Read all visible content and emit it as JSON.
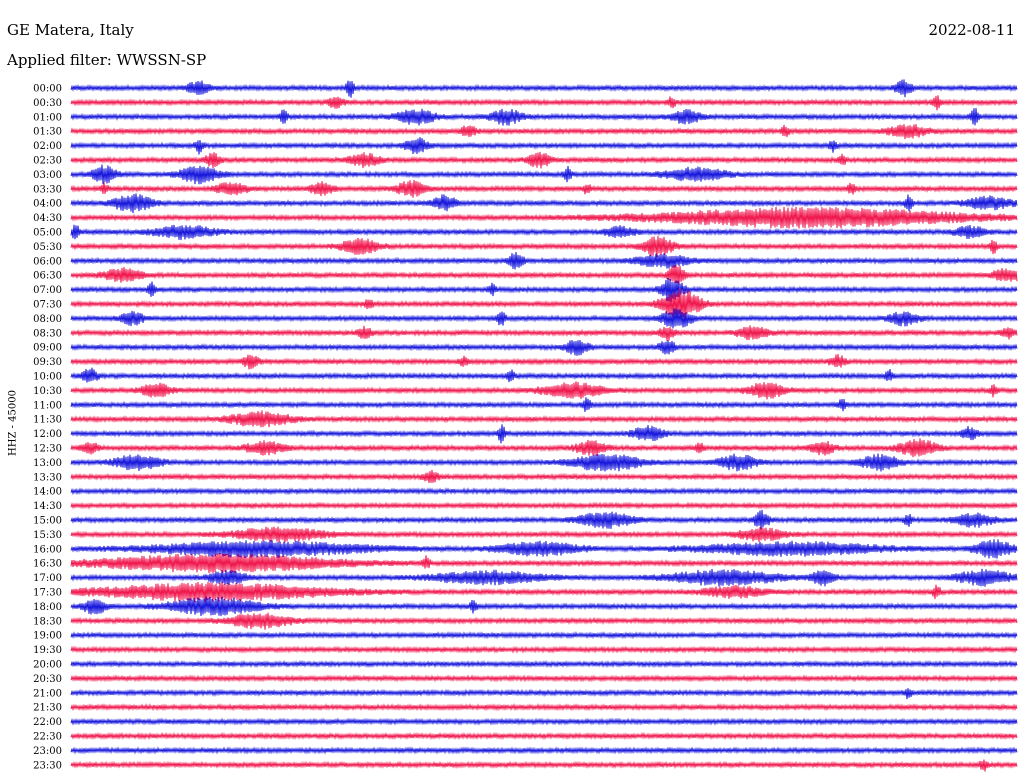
{
  "header": {
    "station": "GE Matera, Italy",
    "date": "2022-08-11",
    "filter": "Applied filter: WWSSN-SP"
  },
  "chart_data": {
    "type": "line",
    "title": "GE Matera, Italy",
    "subtitle": "Applied filter: WWSSN-SP",
    "ylabel": "HHZ - 45000",
    "xlabel": "",
    "grid": false,
    "legend": "none",
    "colors": [
      "#1414dc",
      "#f0144b"
    ],
    "rows": [
      {
        "time": "00:00",
        "events": [
          {
            "x": 0.12,
            "w": 0.03,
            "a": 6
          },
          {
            "x": 0.29,
            "w": 0.01,
            "a": 9
          },
          {
            "x": 0.87,
            "w": 0.02,
            "a": 8
          }
        ]
      },
      {
        "time": "00:30",
        "events": [
          {
            "x": 0.27,
            "w": 0.02,
            "a": 5
          },
          {
            "x": 0.63,
            "w": 0.01,
            "a": 5
          },
          {
            "x": 0.91,
            "w": 0.01,
            "a": 6
          }
        ]
      },
      {
        "time": "01:00",
        "events": [
          {
            "x": 0.22,
            "w": 0.01,
            "a": 6
          },
          {
            "x": 0.34,
            "w": 0.05,
            "a": 7
          },
          {
            "x": 0.44,
            "w": 0.04,
            "a": 7
          },
          {
            "x": 0.63,
            "w": 0.04,
            "a": 6
          },
          {
            "x": 0.95,
            "w": 0.01,
            "a": 8
          }
        ]
      },
      {
        "time": "01:30",
        "events": [
          {
            "x": 0.41,
            "w": 0.02,
            "a": 5
          },
          {
            "x": 0.75,
            "w": 0.01,
            "a": 5
          },
          {
            "x": 0.86,
            "w": 0.05,
            "a": 6
          }
        ]
      },
      {
        "time": "02:00",
        "events": [
          {
            "x": 0.13,
            "w": 0.01,
            "a": 7
          },
          {
            "x": 0.35,
            "w": 0.03,
            "a": 7
          },
          {
            "x": 0.8,
            "w": 0.01,
            "a": 5
          }
        ]
      },
      {
        "time": "02:30",
        "events": [
          {
            "x": 0.14,
            "w": 0.02,
            "a": 6
          },
          {
            "x": 0.29,
            "w": 0.04,
            "a": 6
          },
          {
            "x": 0.48,
            "w": 0.03,
            "a": 7
          },
          {
            "x": 0.81,
            "w": 0.01,
            "a": 5
          }
        ]
      },
      {
        "time": "03:00",
        "events": [
          {
            "x": 0.02,
            "w": 0.03,
            "a": 8
          },
          {
            "x": 0.11,
            "w": 0.05,
            "a": 8
          },
          {
            "x": 0.52,
            "w": 0.01,
            "a": 7
          },
          {
            "x": 0.62,
            "w": 0.08,
            "a": 6
          }
        ]
      },
      {
        "time": "03:30",
        "events": [
          {
            "x": 0.03,
            "w": 0.01,
            "a": 5
          },
          {
            "x": 0.15,
            "w": 0.04,
            "a": 6
          },
          {
            "x": 0.25,
            "w": 0.03,
            "a": 6
          },
          {
            "x": 0.34,
            "w": 0.04,
            "a": 7
          },
          {
            "x": 0.54,
            "w": 0.01,
            "a": 5
          },
          {
            "x": 0.82,
            "w": 0.01,
            "a": 5
          }
        ]
      },
      {
        "time": "04:00",
        "events": [
          {
            "x": 0.04,
            "w": 0.05,
            "a": 8
          },
          {
            "x": 0.38,
            "w": 0.03,
            "a": 7
          },
          {
            "x": 0.88,
            "w": 0.01,
            "a": 7
          },
          {
            "x": 0.94,
            "w": 0.06,
            "a": 6
          }
        ]
      },
      {
        "time": "04:30",
        "events": [
          {
            "x": 0.58,
            "w": 0.4,
            "a": 9
          }
        ]
      },
      {
        "time": "05:00",
        "events": [
          {
            "x": 0.0,
            "w": 0.01,
            "a": 7
          },
          {
            "x": 0.08,
            "w": 0.08,
            "a": 6
          },
          {
            "x": 0.56,
            "w": 0.04,
            "a": 5
          },
          {
            "x": 0.93,
            "w": 0.04,
            "a": 5
          }
        ]
      },
      {
        "time": "05:30",
        "events": [
          {
            "x": 0.28,
            "w": 0.05,
            "a": 7
          },
          {
            "x": 0.6,
            "w": 0.04,
            "a": 9
          },
          {
            "x": 0.97,
            "w": 0.01,
            "a": 6
          }
        ]
      },
      {
        "time": "06:00",
        "events": [
          {
            "x": 0.46,
            "w": 0.02,
            "a": 7
          },
          {
            "x": 0.59,
            "w": 0.07,
            "a": 6
          }
        ]
      },
      {
        "time": "06:30",
        "events": [
          {
            "x": 0.03,
            "w": 0.05,
            "a": 6
          },
          {
            "x": 0.63,
            "w": 0.02,
            "a": 10
          },
          {
            "x": 0.97,
            "w": 0.04,
            "a": 6
          }
        ]
      },
      {
        "time": "07:00",
        "events": [
          {
            "x": 0.08,
            "w": 0.01,
            "a": 6
          },
          {
            "x": 0.44,
            "w": 0.01,
            "a": 5
          },
          {
            "x": 0.62,
            "w": 0.03,
            "a": 11
          }
        ]
      },
      {
        "time": "07:30",
        "events": [
          {
            "x": 0.31,
            "w": 0.01,
            "a": 5
          },
          {
            "x": 0.62,
            "w": 0.05,
            "a": 14
          }
        ]
      },
      {
        "time": "08:00",
        "events": [
          {
            "x": 0.05,
            "w": 0.03,
            "a": 6
          },
          {
            "x": 0.45,
            "w": 0.01,
            "a": 7
          },
          {
            "x": 0.62,
            "w": 0.04,
            "a": 9
          },
          {
            "x": 0.86,
            "w": 0.04,
            "a": 6
          }
        ]
      },
      {
        "time": "08:30",
        "events": [
          {
            "x": 0.3,
            "w": 0.02,
            "a": 5
          },
          {
            "x": 0.62,
            "w": 0.02,
            "a": 6
          },
          {
            "x": 0.7,
            "w": 0.04,
            "a": 6
          },
          {
            "x": 0.98,
            "w": 0.02,
            "a": 5
          }
        ]
      },
      {
        "time": "09:00",
        "events": [
          {
            "x": 0.52,
            "w": 0.03,
            "a": 7
          },
          {
            "x": 0.62,
            "w": 0.02,
            "a": 7
          }
        ]
      },
      {
        "time": "09:30",
        "events": [
          {
            "x": 0.18,
            "w": 0.02,
            "a": 6
          },
          {
            "x": 0.41,
            "w": 0.01,
            "a": 5
          },
          {
            "x": 0.8,
            "w": 0.02,
            "a": 6
          }
        ]
      },
      {
        "time": "10:00",
        "events": [
          {
            "x": 0.01,
            "w": 0.02,
            "a": 7
          },
          {
            "x": 0.46,
            "w": 0.01,
            "a": 5
          },
          {
            "x": 0.86,
            "w": 0.01,
            "a": 5
          }
        ]
      },
      {
        "time": "10:30",
        "events": [
          {
            "x": 0.07,
            "w": 0.04,
            "a": 6
          },
          {
            "x": 0.49,
            "w": 0.08,
            "a": 7
          },
          {
            "x": 0.71,
            "w": 0.05,
            "a": 7
          },
          {
            "x": 0.97,
            "w": 0.01,
            "a": 5
          }
        ]
      },
      {
        "time": "11:00",
        "events": [
          {
            "x": 0.54,
            "w": 0.01,
            "a": 6
          },
          {
            "x": 0.81,
            "w": 0.01,
            "a": 5
          }
        ]
      },
      {
        "time": "11:30",
        "events": [
          {
            "x": 0.16,
            "w": 0.08,
            "a": 7
          }
        ]
      },
      {
        "time": "12:00",
        "events": [
          {
            "x": 0.45,
            "w": 0.01,
            "a": 8
          },
          {
            "x": 0.59,
            "w": 0.04,
            "a": 7
          },
          {
            "x": 0.94,
            "w": 0.02,
            "a": 6
          }
        ]
      },
      {
        "time": "12:30",
        "events": [
          {
            "x": 0.01,
            "w": 0.02,
            "a": 6
          },
          {
            "x": 0.18,
            "w": 0.05,
            "a": 6
          },
          {
            "x": 0.53,
            "w": 0.04,
            "a": 7
          },
          {
            "x": 0.66,
            "w": 0.01,
            "a": 5
          },
          {
            "x": 0.78,
            "w": 0.03,
            "a": 6
          },
          {
            "x": 0.87,
            "w": 0.05,
            "a": 8
          }
        ]
      },
      {
        "time": "13:00",
        "events": [
          {
            "x": 0.04,
            "w": 0.06,
            "a": 7
          },
          {
            "x": 0.52,
            "w": 0.09,
            "a": 8
          },
          {
            "x": 0.68,
            "w": 0.05,
            "a": 7
          },
          {
            "x": 0.83,
            "w": 0.05,
            "a": 7
          }
        ]
      },
      {
        "time": "13:30",
        "events": [
          {
            "x": 0.37,
            "w": 0.02,
            "a": 5
          }
        ]
      },
      {
        "time": "14:00",
        "events": []
      },
      {
        "time": "14:30",
        "events": []
      },
      {
        "time": "15:00",
        "events": [
          {
            "x": 0.53,
            "w": 0.07,
            "a": 7
          },
          {
            "x": 0.72,
            "w": 0.02,
            "a": 8
          },
          {
            "x": 0.88,
            "w": 0.01,
            "a": 6
          },
          {
            "x": 0.93,
            "w": 0.05,
            "a": 6
          }
        ]
      },
      {
        "time": "15:30",
        "events": [
          {
            "x": 0.16,
            "w": 0.12,
            "a": 6
          },
          {
            "x": 0.7,
            "w": 0.06,
            "a": 6
          }
        ]
      },
      {
        "time": "16:00",
        "events": [
          {
            "x": 0.06,
            "w": 0.28,
            "a": 7
          },
          {
            "x": 0.44,
            "w": 0.11,
            "a": 6
          },
          {
            "x": 0.64,
            "w": 0.24,
            "a": 6
          },
          {
            "x": 0.95,
            "w": 0.05,
            "a": 8
          }
        ]
      },
      {
        "time": "16:30",
        "events": [
          {
            "x": 0.0,
            "w": 0.31,
            "a": 8
          },
          {
            "x": 0.37,
            "w": 0.01,
            "a": 6
          }
        ]
      },
      {
        "time": "17:00",
        "events": [
          {
            "x": 0.14,
            "w": 0.05,
            "a": 6
          },
          {
            "x": 0.37,
            "w": 0.14,
            "a": 6
          },
          {
            "x": 0.62,
            "w": 0.14,
            "a": 7
          },
          {
            "x": 0.78,
            "w": 0.03,
            "a": 7
          },
          {
            "x": 0.93,
            "w": 0.07,
            "a": 7
          }
        ]
      },
      {
        "time": "17:30",
        "events": [
          {
            "x": 0.0,
            "w": 0.3,
            "a": 8
          },
          {
            "x": 0.66,
            "w": 0.08,
            "a": 5
          },
          {
            "x": 0.91,
            "w": 0.01,
            "a": 6
          }
        ]
      },
      {
        "time": "18:00",
        "events": [
          {
            "x": 0.01,
            "w": 0.03,
            "a": 7
          },
          {
            "x": 0.09,
            "w": 0.12,
            "a": 8
          },
          {
            "x": 0.42,
            "w": 0.01,
            "a": 5
          }
        ]
      },
      {
        "time": "18:30",
        "events": [
          {
            "x": 0.16,
            "w": 0.08,
            "a": 7
          }
        ]
      },
      {
        "time": "19:00",
        "events": []
      },
      {
        "time": "19:30",
        "events": []
      },
      {
        "time": "20:00",
        "events": []
      },
      {
        "time": "20:30",
        "events": []
      },
      {
        "time": "21:00",
        "events": [
          {
            "x": 0.88,
            "w": 0.01,
            "a": 5
          }
        ]
      },
      {
        "time": "21:30",
        "events": []
      },
      {
        "time": "22:00",
        "events": []
      },
      {
        "time": "22:30",
        "events": []
      },
      {
        "time": "23:00",
        "events": []
      },
      {
        "time": "23:30",
        "events": [
          {
            "x": 0.96,
            "w": 0.01,
            "a": 5
          }
        ]
      }
    ]
  }
}
